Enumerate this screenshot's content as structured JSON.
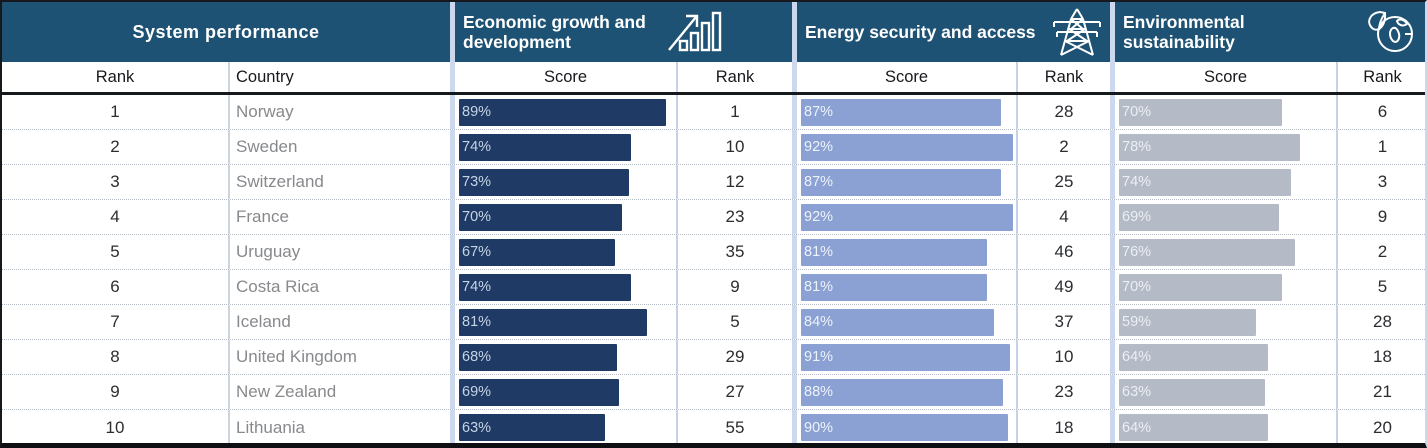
{
  "colors": {
    "header_bg": "#1e5274",
    "econ_bar": "#1f3a64",
    "energy_bar": "#8ba1d3",
    "env_bar": "#b4bbc7"
  },
  "chart_data": {
    "type": "table",
    "sections": [
      {
        "title": "System performance",
        "icon": null,
        "columns": [
          "Rank",
          "Country"
        ]
      },
      {
        "title": "Economic growth and development",
        "icon": "bar-chart-growth-icon",
        "columns": [
          "Score",
          "Rank"
        ]
      },
      {
        "title": "Energy security and access",
        "icon": "transmission-tower-icon",
        "columns": [
          "Score",
          "Rank"
        ]
      },
      {
        "title": "Environmental sustainability",
        "icon": "globe-leaf-icon",
        "columns": [
          "Score",
          "Rank"
        ]
      }
    ],
    "score_unit": "%",
    "rows": [
      {
        "rank": "1",
        "country": "Norway",
        "econ_score": 89,
        "econ_rank": "1",
        "energy_score": 87,
        "energy_rank": "28",
        "env_score": 70,
        "env_rank": "6"
      },
      {
        "rank": "2",
        "country": "Sweden",
        "econ_score": 74,
        "econ_rank": "10",
        "energy_score": 92,
        "energy_rank": "2",
        "env_score": 78,
        "env_rank": "1"
      },
      {
        "rank": "3",
        "country": "Switzerland",
        "econ_score": 73,
        "econ_rank": "12",
        "energy_score": 87,
        "energy_rank": "25",
        "env_score": 74,
        "env_rank": "3"
      },
      {
        "rank": "4",
        "country": "France",
        "econ_score": 70,
        "econ_rank": "23",
        "energy_score": 92,
        "energy_rank": "4",
        "env_score": 69,
        "env_rank": "9"
      },
      {
        "rank": "5",
        "country": "Uruguay",
        "econ_score": 67,
        "econ_rank": "35",
        "energy_score": 81,
        "energy_rank": "46",
        "env_score": 76,
        "env_rank": "2"
      },
      {
        "rank": "6",
        "country": "Costa Rica",
        "econ_score": 74,
        "econ_rank": "9",
        "energy_score": 81,
        "energy_rank": "49",
        "env_score": 70,
        "env_rank": "5"
      },
      {
        "rank": "7",
        "country": "Iceland",
        "econ_score": 81,
        "econ_rank": "5",
        "energy_score": 84,
        "energy_rank": "37",
        "env_score": 59,
        "env_rank": "28"
      },
      {
        "rank": "8",
        "country": "United Kingdom",
        "econ_score": 68,
        "econ_rank": "29",
        "energy_score": 91,
        "energy_rank": "10",
        "env_score": 64,
        "env_rank": "18"
      },
      {
        "rank": "9",
        "country": "New Zealand",
        "econ_score": 69,
        "econ_rank": "27",
        "energy_score": 88,
        "energy_rank": "23",
        "env_score": 63,
        "env_rank": "21"
      },
      {
        "rank": "10",
        "country": "Lithuania",
        "econ_score": 63,
        "econ_rank": "55",
        "energy_score": 90,
        "energy_rank": "18",
        "env_score": 64,
        "env_rank": "20"
      }
    ]
  }
}
